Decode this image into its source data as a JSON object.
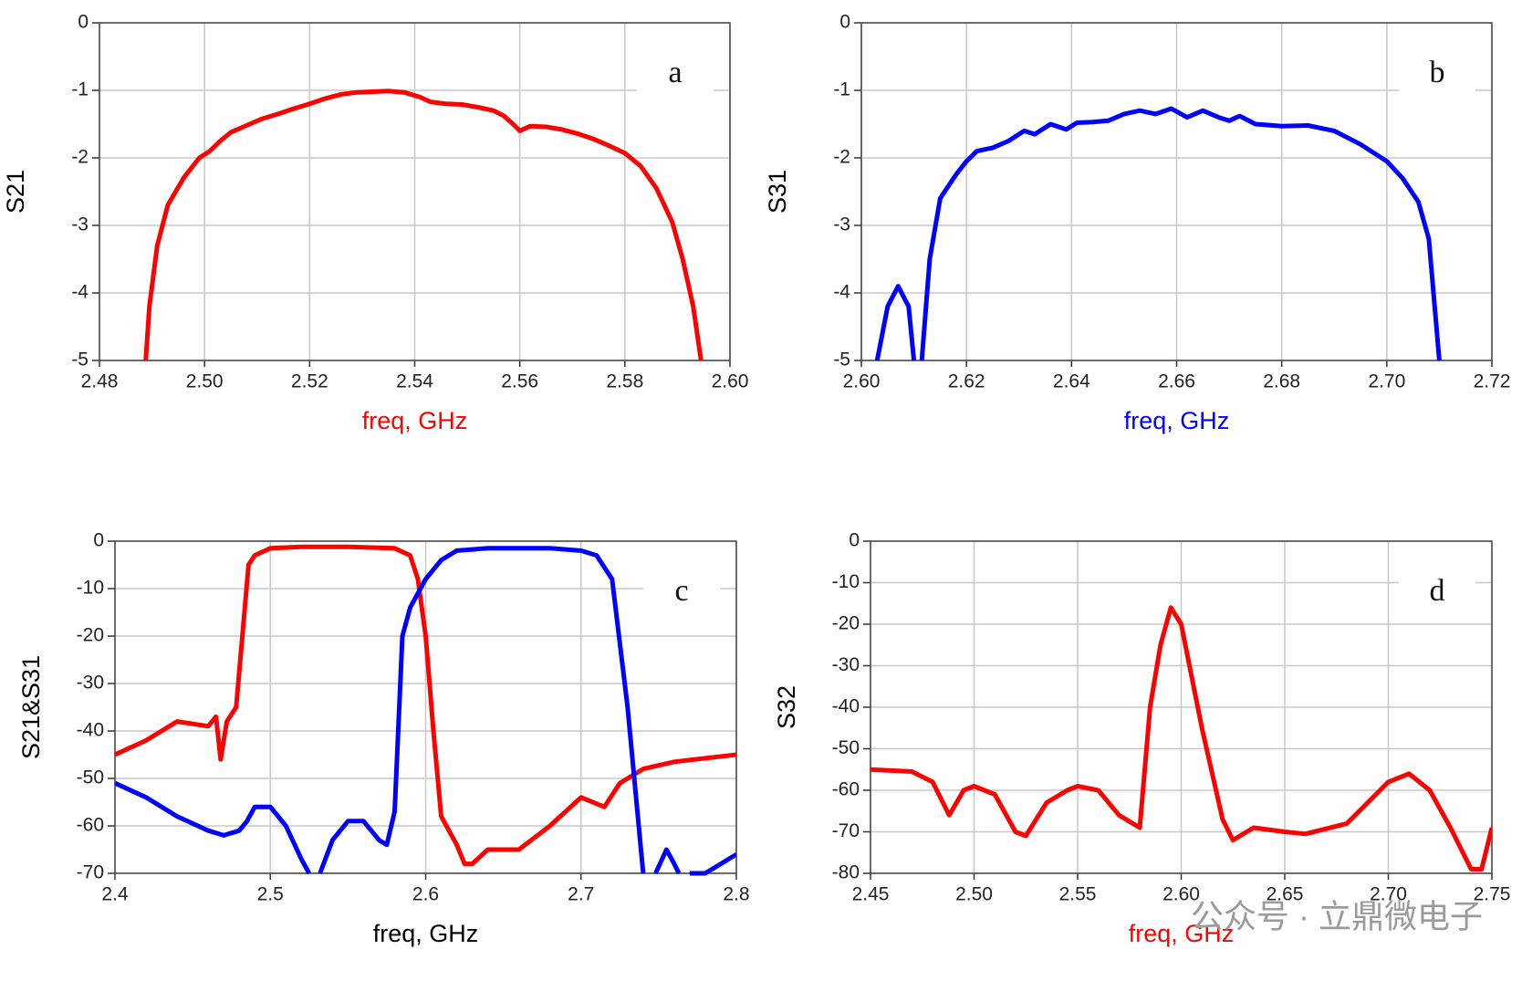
{
  "chart_data": [
    {
      "type": "line",
      "annotation": "a",
      "ylabel": "S21",
      "xlabel": "freq, GHz",
      "xlabel_color": "#ff0000",
      "grid": true,
      "xlim": [
        2.48,
        2.6
      ],
      "xticks": [
        2.48,
        {
          "value": 2.5,
          "label": "2.50"
        },
        2.52,
        2.54,
        2.56,
        2.58,
        {
          "value": 2.6,
          "label": "2.60"
        }
      ],
      "ylim": [
        -5,
        0
      ],
      "yticks": [
        0,
        -1,
        -2,
        -3,
        -4,
        -5
      ],
      "series": [
        {
          "color": "#ff0000",
          "x": [
            2.4888,
            2.4895,
            2.491,
            2.493,
            2.496,
            2.499,
            2.501,
            2.503,
            2.505,
            2.508,
            2.511,
            2.514,
            2.517,
            2.52,
            2.523,
            2.526,
            2.529,
            2.532,
            2.535,
            2.538,
            2.541,
            2.543,
            2.546,
            2.549,
            2.552,
            2.555,
            2.557,
            2.559,
            2.56,
            2.562,
            2.565,
            2.568,
            2.571,
            2.574,
            2.577,
            2.58,
            2.583,
            2.586,
            2.589,
            2.591,
            2.593,
            2.5945
          ],
          "values": [
            -5,
            -4.2,
            -3.3,
            -2.7,
            -2.3,
            -2.0,
            -1.9,
            -1.75,
            -1.62,
            -1.52,
            -1.42,
            -1.35,
            -1.27,
            -1.2,
            -1.12,
            -1.06,
            -1.03,
            -1.02,
            -1.01,
            -1.03,
            -1.1,
            -1.17,
            -1.2,
            -1.21,
            -1.25,
            -1.3,
            -1.38,
            -1.52,
            -1.6,
            -1.53,
            -1.54,
            -1.58,
            -1.64,
            -1.72,
            -1.82,
            -1.93,
            -2.12,
            -2.45,
            -2.95,
            -3.5,
            -4.2,
            -5
          ]
        }
      ]
    },
    {
      "type": "line",
      "annotation": "b",
      "ylabel": "S31",
      "xlabel": "freq, GHz",
      "xlabel_color": "#0000ff",
      "grid": true,
      "xlim": [
        2.6,
        2.72
      ],
      "xticks": [
        {
          "value": 2.6,
          "label": "2.60"
        },
        2.62,
        2.64,
        2.66,
        2.68,
        {
          "value": 2.7,
          "label": "2.70"
        },
        2.72
      ],
      "ylim": [
        -5,
        0
      ],
      "yticks": [
        0,
        -1,
        -2,
        -3,
        -4,
        -5
      ],
      "series": [
        {
          "color": "#0000ff",
          "x": [
            2.603,
            2.605,
            2.607,
            2.609,
            2.61,
            2.611,
            2.6115,
            2.613,
            2.615,
            2.618,
            2.62,
            2.622,
            2.625,
            2.628,
            2.631,
            2.633,
            2.636,
            2.639,
            2.641,
            2.644,
            2.647,
            2.65,
            2.653,
            2.656,
            2.659,
            2.662,
            2.665,
            2.668,
            2.67,
            2.672,
            2.675,
            2.68,
            2.685,
            2.69,
            2.695,
            2.7,
            2.703,
            2.706,
            2.708,
            2.71
          ],
          "values": [
            -5,
            -4.2,
            -3.9,
            -4.2,
            -5,
            null,
            -5,
            -3.5,
            -2.6,
            -2.25,
            -2.05,
            -1.9,
            -1.85,
            -1.75,
            -1.6,
            -1.65,
            -1.5,
            -1.58,
            -1.48,
            -1.47,
            -1.45,
            -1.35,
            -1.3,
            -1.35,
            -1.27,
            -1.4,
            -1.3,
            -1.4,
            -1.45,
            -1.38,
            -1.5,
            -1.53,
            -1.52,
            -1.6,
            -1.8,
            -2.05,
            -2.3,
            -2.65,
            -3.2,
            -5
          ]
        }
      ]
    },
    {
      "type": "line",
      "annotation": "c",
      "ylabel": "S21&S31",
      "xlabel": "freq, GHz",
      "xlabel_color": "#000000",
      "grid": true,
      "xlim": [
        2.4,
        2.8
      ],
      "xticks": [
        2.4,
        2.5,
        2.6,
        2.7,
        2.8
      ],
      "ylim": [
        -70,
        0
      ],
      "yticks": [
        0,
        -10,
        -20,
        -30,
        -40,
        -50,
        -60,
        -70
      ],
      "series": [
        {
          "color": "#ff0000",
          "x": [
            2.4,
            2.42,
            2.44,
            2.46,
            2.465,
            2.468,
            2.472,
            2.478,
            2.482,
            2.486,
            2.49,
            2.5,
            2.52,
            2.55,
            2.58,
            2.59,
            2.595,
            2.6,
            2.605,
            2.61,
            2.62,
            2.625,
            2.63,
            2.64,
            2.66,
            2.68,
            2.7,
            2.715,
            2.725,
            2.74,
            2.76,
            2.8
          ],
          "values": [
            -45,
            -42,
            -38,
            -39,
            -37,
            -46,
            -38,
            -35,
            -20,
            -5,
            -3,
            -1.5,
            -1.2,
            -1.2,
            -1.5,
            -3,
            -8,
            -20,
            -40,
            -58,
            -64,
            -68,
            -68,
            -65,
            -65,
            -60,
            -54,
            -56,
            -51,
            -48,
            -46.5,
            -45
          ]
        },
        {
          "color": "#0000ff",
          "x": [
            2.4,
            2.42,
            2.44,
            2.46,
            2.47,
            2.48,
            2.485,
            2.49,
            2.5,
            2.51,
            2.52,
            2.525,
            2.528,
            2.532,
            2.54,
            2.55,
            2.56,
            2.57,
            2.575,
            2.58,
            2.585,
            2.59,
            2.6,
            2.61,
            2.615,
            2.62,
            2.64,
            2.68,
            2.7,
            2.71,
            2.72,
            2.73,
            2.74,
            2.744,
            2.748,
            2.755,
            2.76,
            2.763,
            2.766,
            2.77,
            2.78,
            2.79,
            2.8
          ],
          "values": [
            -51,
            -54,
            -58,
            -61,
            -62,
            -61,
            -59,
            -56,
            -56,
            -60,
            -67,
            -70,
            null,
            -70,
            -63,
            -59,
            -59,
            -63,
            -64,
            -57,
            -20,
            -14,
            -8,
            -4,
            -3,
            -2,
            -1.5,
            -1.5,
            -2,
            -3,
            -8,
            -35,
            -70,
            null,
            -70,
            -65,
            -68,
            -70,
            null,
            -70,
            -70,
            -68,
            -66
          ]
        }
      ]
    },
    {
      "type": "line",
      "annotation": "d",
      "ylabel": "S32",
      "xlabel": "freq, GHz",
      "xlabel_color": "#ff0000",
      "grid": true,
      "xlim": [
        2.45,
        2.75
      ],
      "xticks": [
        2.45,
        {
          "value": 2.5,
          "label": "2.50"
        },
        2.55,
        {
          "value": 2.6,
          "label": "2.60"
        },
        2.65,
        {
          "value": 2.7,
          "label": "2.70"
        },
        2.75
      ],
      "ylim": [
        -80,
        0
      ],
      "yticks": [
        0,
        -10,
        -20,
        -30,
        -40,
        -50,
        -60,
        -70,
        -80
      ],
      "watermark": "公众号 · 立鼎微电子",
      "series": [
        {
          "color": "#ff0000",
          "x": [
            2.45,
            2.47,
            2.48,
            2.488,
            2.495,
            2.5,
            2.51,
            2.52,
            2.525,
            2.535,
            2.545,
            2.55,
            2.56,
            2.57,
            2.58,
            2.585,
            2.59,
            2.595,
            2.6,
            2.61,
            2.62,
            2.625,
            2.635,
            2.65,
            2.66,
            2.68,
            2.7,
            2.71,
            2.72,
            2.73,
            2.74,
            2.745,
            2.75
          ],
          "values": [
            -55,
            -55.5,
            -58,
            -66,
            -60,
            -59,
            -61,
            -70,
            -71,
            -63,
            -60,
            -59,
            -60,
            -66,
            -69,
            -40,
            -25,
            -16,
            -20,
            -45,
            -67,
            -72,
            -69,
            -70,
            -70.5,
            -68,
            -58,
            -56,
            -60,
            -69,
            -79,
            -79,
            -69
          ]
        }
      ]
    }
  ]
}
